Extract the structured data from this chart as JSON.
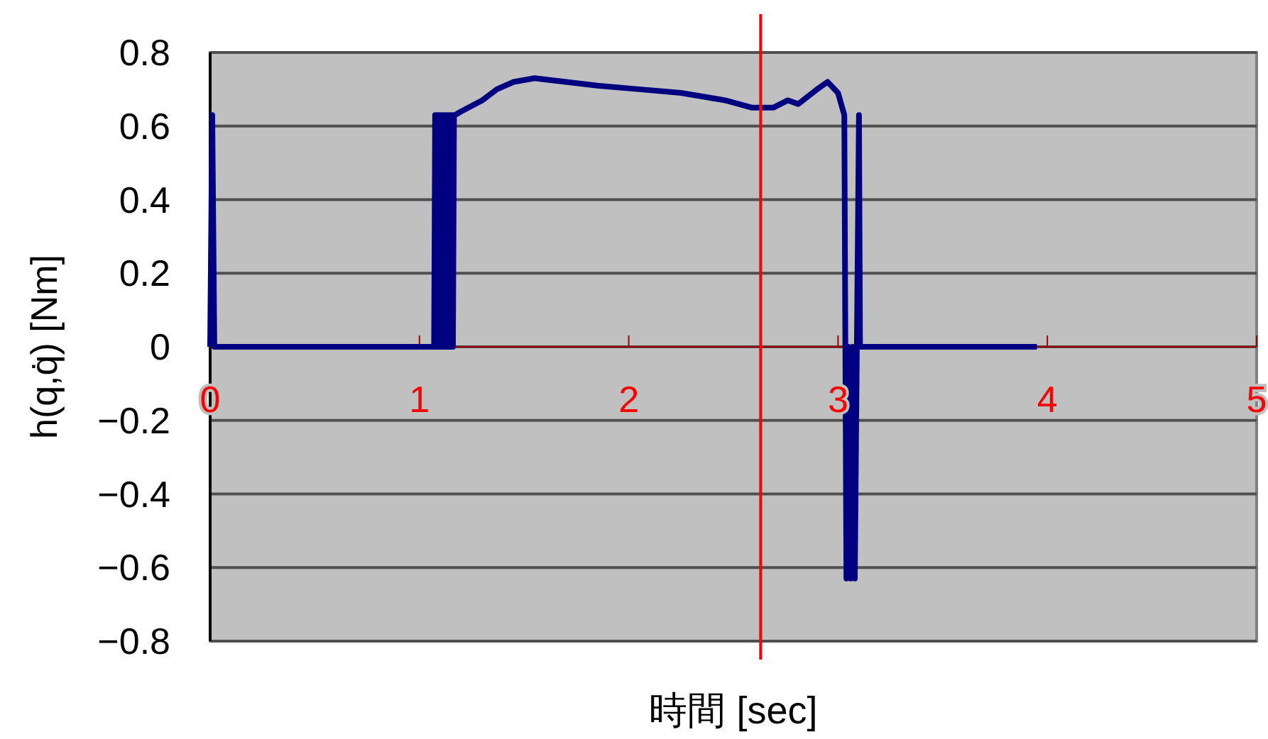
{
  "chart_data": {
    "type": "line",
    "xlabel": "時間 [sec]",
    "ylabel": "h(q,q̇) [Nm]",
    "xlim": [
      0,
      5
    ],
    "xticks": [
      0,
      1,
      2,
      3,
      4,
      5
    ],
    "ylim": [
      -0.8,
      0.8
    ],
    "yticks": [
      -0.8,
      -0.6,
      -0.4,
      -0.2,
      0,
      0.2,
      0.4,
      0.6,
      0.8
    ],
    "grid": "y",
    "ref_lines": [
      {
        "axis": "x",
        "value": 2.63,
        "color": "#ff0000"
      }
    ],
    "series": [
      {
        "color": "#000080",
        "x": [
          0,
          0.01,
          0.02,
          1.07,
          1.075,
          1.08,
          1.085,
          1.09,
          1.095,
          1.1,
          1.105,
          1.11,
          1.115,
          1.12,
          1.125,
          1.13,
          1.135,
          1.14,
          1.145,
          1.15,
          1.155,
          1.16,
          1.165,
          1.17,
          1.2,
          1.3,
          1.37,
          1.45,
          1.55,
          1.7,
          1.85,
          2.05,
          2.25,
          2.46,
          2.59,
          2.69,
          2.76,
          2.81,
          2.9,
          2.95,
          3.0,
          3.03,
          3.035,
          3.04,
          3.05,
          3.06,
          3.07,
          3.08,
          3.09,
          3.1,
          3.105,
          3.95
        ],
        "values": [
          0,
          0.63,
          0,
          0,
          0.63,
          0,
          0.63,
          0,
          0.63,
          0,
          0.63,
          0,
          0.63,
          0,
          0.63,
          0,
          0.63,
          0,
          0.63,
          0,
          0.63,
          0,
          0.63,
          0.63,
          0.64,
          0.67,
          0.7,
          0.72,
          0.73,
          0.72,
          0.71,
          0.7,
          0.69,
          0.67,
          0.65,
          0.65,
          0.67,
          0.66,
          0.7,
          0.72,
          0.69,
          0.63,
          0,
          -0.63,
          0,
          -0.63,
          0,
          -0.63,
          0,
          0.63,
          0,
          0
        ]
      }
    ]
  }
}
